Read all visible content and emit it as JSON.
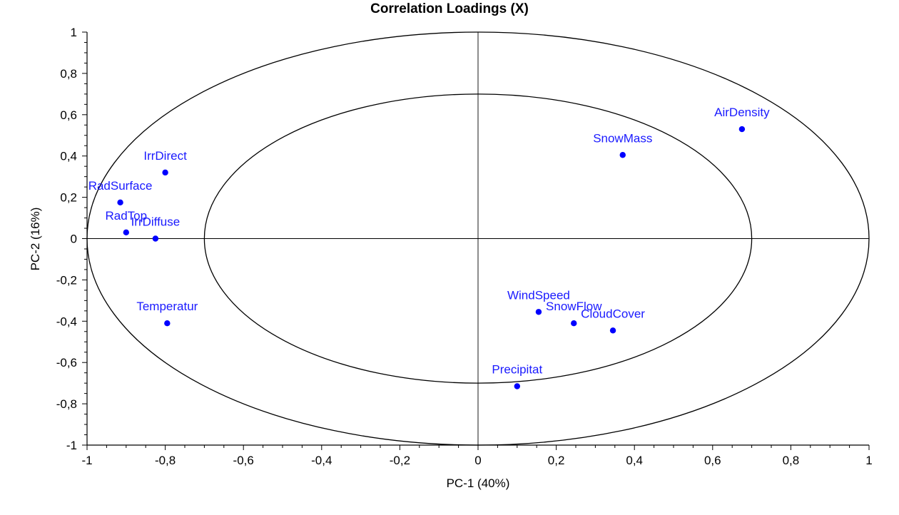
{
  "chart_data": {
    "type": "scatter",
    "title": "Correlation Loadings (X)",
    "xlabel": "PC-1 (40%)",
    "ylabel": "PC-2 (16%)",
    "xlim": [
      -1,
      1
    ],
    "ylim": [
      -1,
      1
    ],
    "xticks": [
      "-1",
      "-0,8",
      "-0,6",
      "-0,4",
      "-0,2",
      "0",
      "0,2",
      "0,4",
      "0,6",
      "0,8",
      "1"
    ],
    "yticks": [
      "1",
      "0,8",
      "0,6",
      "0,4",
      "0,2",
      "0",
      "-0,2",
      "-0,4",
      "-0,6",
      "-0,8",
      "-1"
    ],
    "xtick_values": [
      -1,
      -0.8,
      -0.6,
      -0.4,
      -0.2,
      0,
      0.2,
      0.4,
      0.6,
      0.8,
      1
    ],
    "ytick_values": [
      1,
      0.8,
      0.6,
      0.4,
      0.2,
      0,
      -0.2,
      -0.4,
      -0.6,
      -0.8,
      -1
    ],
    "ellipses": [
      1.0,
      0.7
    ],
    "grid": false,
    "point_color": "#0000ff",
    "label_color": "#1a1aff",
    "points": [
      {
        "label": "AirDensity",
        "x": 0.675,
        "y": 0.53
      },
      {
        "label": "SnowMass",
        "x": 0.37,
        "y": 0.405
      },
      {
        "label": "IrrDirect",
        "x": -0.8,
        "y": 0.32
      },
      {
        "label": "RadSurface",
        "x": -0.915,
        "y": 0.175
      },
      {
        "label": "RadTop",
        "x": -0.9,
        "y": 0.03
      },
      {
        "label": "IrrDiffuse",
        "x": -0.825,
        "y": 0.0
      },
      {
        "label": "Temperatur",
        "x": -0.795,
        "y": -0.41
      },
      {
        "label": "WindSpeed",
        "x": 0.155,
        "y": -0.355
      },
      {
        "label": "SnowFlow",
        "x": 0.245,
        "y": -0.41
      },
      {
        "label": "CloudCover",
        "x": 0.345,
        "y": -0.445
      },
      {
        "label": "Precipitat",
        "x": 0.1,
        "y": -0.715
      }
    ]
  }
}
